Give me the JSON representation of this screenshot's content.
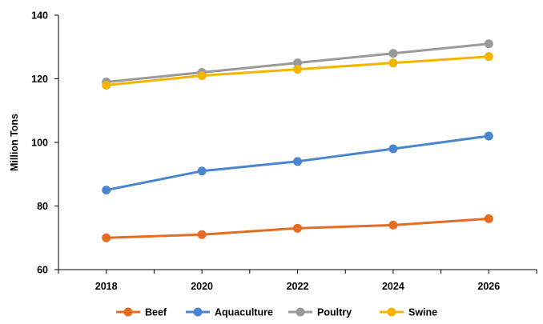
{
  "chart_data": {
    "type": "line",
    "title": "",
    "xlabel": "",
    "ylabel": "Million Tons",
    "x": [
      2018,
      2020,
      2022,
      2024,
      2026
    ],
    "xlim": [
      2017,
      2027
    ],
    "ylim": [
      60,
      140
    ],
    "yticks": [
      60,
      80,
      100,
      120,
      140
    ],
    "grid": false,
    "legend_position": "bottom",
    "series": [
      {
        "name": "Beef",
        "color": "#E46C23",
        "values": [
          70,
          71,
          73,
          74,
          76
        ]
      },
      {
        "name": "Aquaculture",
        "color": "#4A86D0",
        "values": [
          85,
          91,
          94,
          98,
          102
        ]
      },
      {
        "name": "Poultry",
        "color": "#9A9A9A",
        "values": [
          119,
          122,
          125,
          128,
          131
        ]
      },
      {
        "name": "Swine",
        "color": "#F5B400",
        "values": [
          118,
          121,
          123,
          125,
          127
        ]
      }
    ]
  }
}
